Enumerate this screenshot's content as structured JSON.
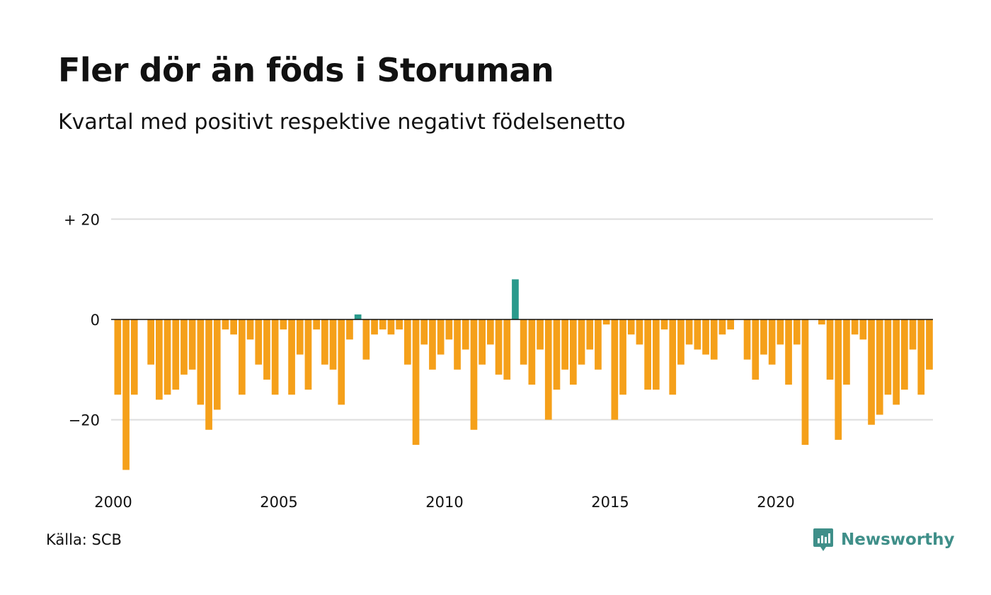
{
  "title": "Fler dör än föds i Storuman",
  "subtitle": "Kvartal med positivt respektive negativt födelsenetto",
  "source": "Källa: SCB",
  "brand": "Newsworthy",
  "colors": {
    "negative": "#f5a01a",
    "positive": "#2a9a8c",
    "grid": "#dddddd",
    "zero_line": "#111111",
    "brand": "#3f8f89"
  },
  "chart_data": {
    "type": "bar",
    "x_start_year": 2000,
    "quarters_per_year": 4,
    "xticks": [
      "2000",
      "2005",
      "2010",
      "2015",
      "2020"
    ],
    "yticks": [
      {
        "value": 20,
        "label": "+ 20"
      },
      {
        "value": 0,
        "label": "0"
      },
      {
        "value": -20,
        "label": "−20"
      }
    ],
    "ylim": [
      -30,
      20
    ],
    "grid": true,
    "values": [
      -15,
      -30,
      -15,
      0,
      -9,
      -16,
      -15,
      -14,
      -11,
      -10,
      -17,
      -22,
      -18,
      -2,
      -3,
      -15,
      -4,
      -9,
      -12,
      -15,
      -2,
      -15,
      -7,
      -14,
      -2,
      -9,
      -10,
      -17,
      -4,
      1,
      -8,
      -3,
      -2,
      -3,
      -2,
      -9,
      -25,
      -5,
      -10,
      -7,
      -4,
      -10,
      -6,
      -22,
      -9,
      -5,
      -11,
      -12,
      8,
      -9,
      -13,
      -6,
      -20,
      -14,
      -10,
      -13,
      -9,
      -6,
      -10,
      -1,
      -20,
      -15,
      -3,
      -5,
      -14,
      -14,
      -2,
      -15,
      -9,
      -5,
      -6,
      -7,
      -8,
      -3,
      -2,
      0,
      -8,
      -12,
      -7,
      -9,
      -5,
      -13,
      -5,
      -25,
      0,
      -1,
      -12,
      -24,
      -13,
      -3,
      -4,
      -21,
      -19,
      -15,
      -17,
      -14,
      -6,
      -15,
      -10
    ]
  }
}
